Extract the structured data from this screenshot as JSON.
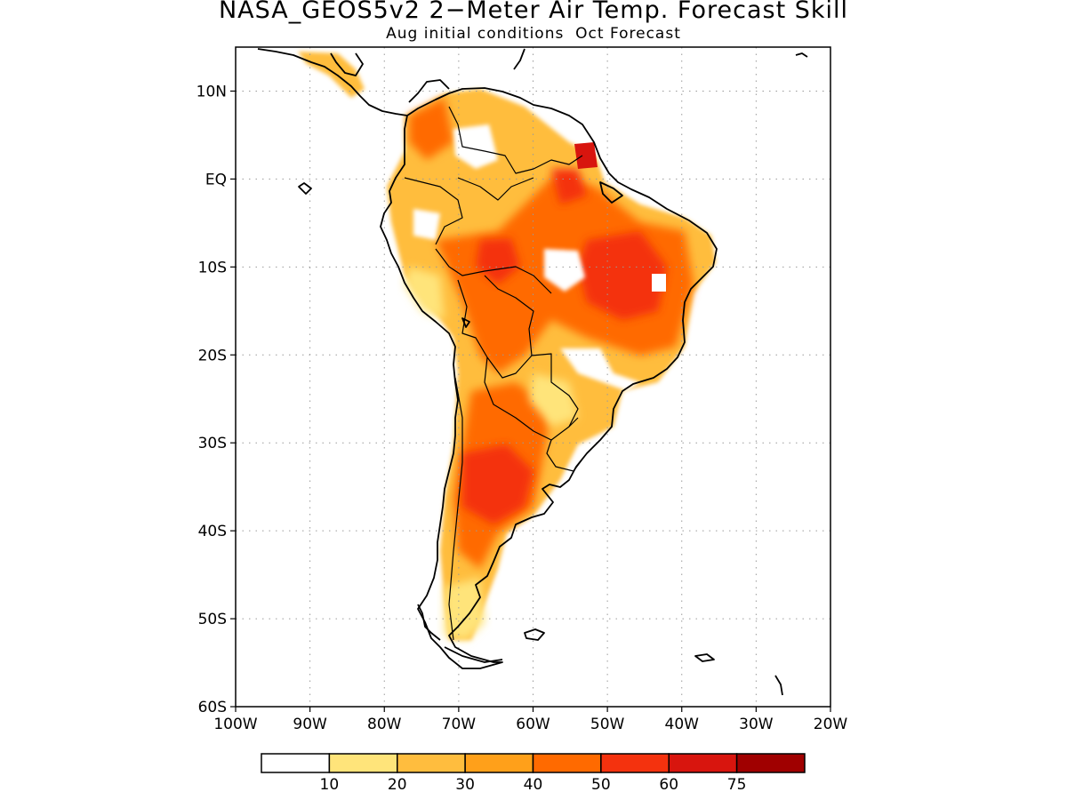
{
  "title": "NASA_GEOS5v2 2−Meter Air Temp. Forecast Skill",
  "subtitle": "Aug initial conditions  Oct Forecast",
  "map": {
    "lon_range": [
      -100,
      -20
    ],
    "lat_range": [
      -60,
      15
    ],
    "lat_ticks": [
      {
        "value": 10,
        "label": "10N"
      },
      {
        "value": 0,
        "label": "EQ"
      },
      {
        "value": -10,
        "label": "10S"
      },
      {
        "value": -20,
        "label": "20S"
      },
      {
        "value": -30,
        "label": "30S"
      },
      {
        "value": -40,
        "label": "40S"
      },
      {
        "value": -50,
        "label": "50S"
      },
      {
        "value": -60,
        "label": "60S"
      }
    ],
    "lon_ticks": [
      {
        "value": -100,
        "label": "100W"
      },
      {
        "value": -90,
        "label": "90W"
      },
      {
        "value": -80,
        "label": "80W"
      },
      {
        "value": -70,
        "label": "70W"
      },
      {
        "value": -60,
        "label": "60W"
      },
      {
        "value": -50,
        "label": "50W"
      },
      {
        "value": -40,
        "label": "40W"
      },
      {
        "value": -30,
        "label": "30W"
      },
      {
        "value": -20,
        "label": "20W"
      }
    ],
    "grid": "dotted"
  },
  "colorbar": {
    "colors": [
      "#ffffff",
      "#ffe47a",
      "#ffbd3e",
      "#ffa01a",
      "#ff6a00",
      "#f4320e",
      "#d8150e",
      "#a00000"
    ],
    "labels": [
      "10",
      "20",
      "30",
      "40",
      "50",
      "60",
      "75"
    ]
  },
  "colors": {
    "coast": "#000000",
    "grid": "#9a9a9a",
    "frame": "#000000"
  }
}
